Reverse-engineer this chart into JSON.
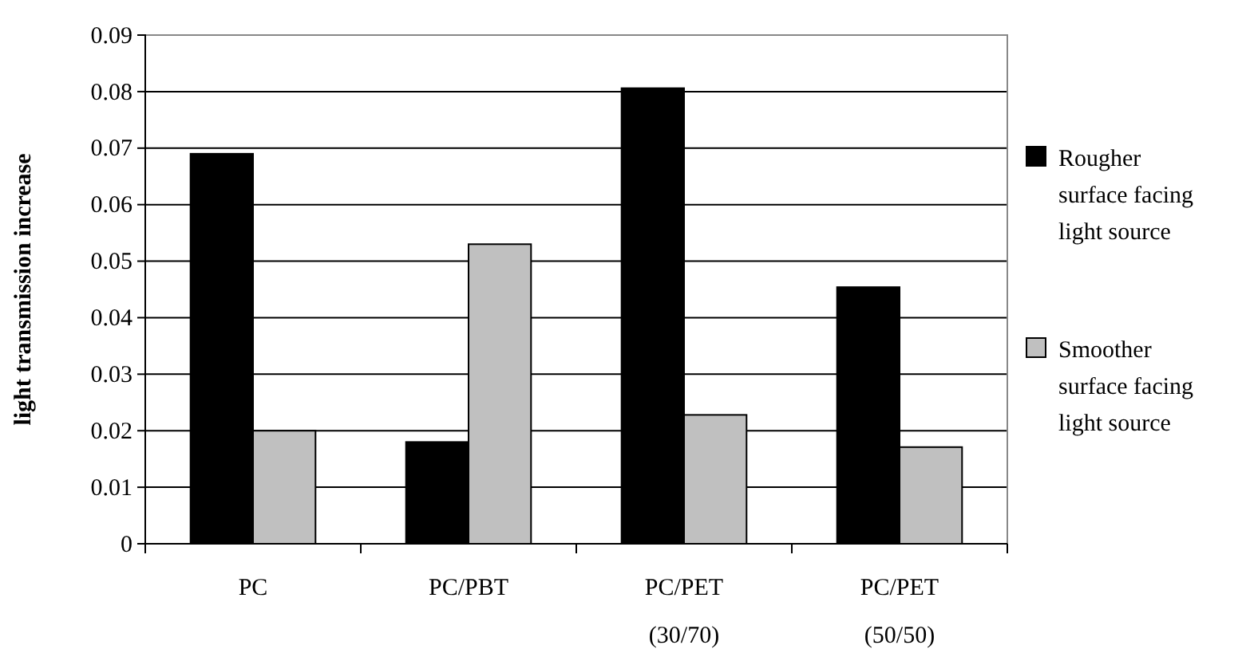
{
  "chart_data": {
    "type": "bar",
    "ylabel": "light transmission increase",
    "categories": [
      "PC",
      "PC/PBT",
      "PC/PET\n(30/70)",
      "PC/PET\n(50/50)"
    ],
    "series": [
      {
        "name": "Rougher surface facing light source",
        "color": "#000000",
        "values": [
          0.069,
          0.018,
          0.0806,
          0.0454
        ]
      },
      {
        "name": "Smoother surface facing light source",
        "color": "#c0c0c0",
        "values": [
          0.02,
          0.053,
          0.0228,
          0.0171
        ]
      }
    ],
    "ylim": [
      0,
      0.09
    ],
    "yticks": [
      0,
      0.01,
      0.02,
      0.03,
      0.04,
      0.05,
      0.06,
      0.07,
      0.08,
      0.09
    ],
    "grid": "y",
    "legend": "right"
  }
}
